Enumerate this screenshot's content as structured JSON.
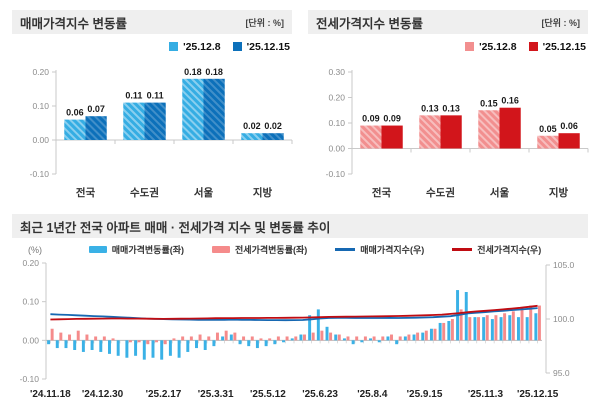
{
  "panels": {
    "sale": {
      "title": "매매가격지수 변동률",
      "unit": "[단위 : %]",
      "chart_data": {
        "type": "bar",
        "categories": [
          "전국",
          "수도권",
          "서울",
          "지방"
        ],
        "series": [
          {
            "name": "'25.12.8",
            "color": "#35ADE3",
            "hatch": true,
            "values": [
              0.06,
              0.11,
              0.18,
              0.02
            ]
          },
          {
            "name": "'25.12.15",
            "color": "#0C70BA",
            "hatch": true,
            "values": [
              0.07,
              0.11,
              0.18,
              0.02
            ]
          }
        ],
        "ylim": [
          -0.1,
          0.2
        ],
        "yticks": [
          0.2,
          0.1,
          0.0,
          -0.1
        ]
      }
    },
    "jeonse": {
      "title": "전세가격지수 변동률",
      "unit": "[단위 : %]",
      "chart_data": {
        "type": "bar",
        "categories": [
          "전국",
          "수도권",
          "서울",
          "지방"
        ],
        "series": [
          {
            "name": "'25.12.8",
            "color": "#F28F8F",
            "hatch": true,
            "values": [
              0.09,
              0.13,
              0.15,
              0.05
            ]
          },
          {
            "name": "'25.12.15",
            "color": "#D2151B",
            "hatch": false,
            "values": [
              0.09,
              0.13,
              0.16,
              0.06
            ]
          }
        ],
        "ylim": [
          -0.1,
          0.3
        ],
        "yticks": [
          0.3,
          0.2,
          0.1,
          0.0,
          -0.1
        ]
      }
    },
    "trend": {
      "title": "최근 1년간 전국 아파트 매매 · 전세가격 지수 및 변동률 추이",
      "left_axis_unit": "(%)",
      "chart_data": {
        "type": "combo",
        "weeks": 57,
        "x_tick_labels": [
          "'24.11.18",
          "'24.12.30",
          "'25.2.17",
          "'25.3.31",
          "'25.5.12",
          "'25.6.23",
          "'25.8.4",
          "'25.9.15",
          "'25.11.3",
          "'25.12.15"
        ],
        "x_tick_positions": [
          0,
          6,
          13,
          19,
          25,
          31,
          37,
          43,
          50,
          56
        ],
        "bar_series": [
          {
            "name": "매매가격변동률(좌)",
            "color": "#3AB1E6",
            "values": [
              -0.01,
              -0.02,
              -0.02,
              -0.025,
              -0.03,
              -0.025,
              -0.03,
              -0.035,
              -0.04,
              -0.045,
              -0.04,
              -0.05,
              -0.045,
              -0.05,
              -0.04,
              -0.045,
              -0.03,
              -0.02,
              -0.025,
              -0.015,
              0.01,
              0.015,
              -0.01,
              -0.015,
              -0.02,
              -0.015,
              -0.01,
              -0.005,
              0.005,
              0.015,
              0.065,
              0.08,
              0.035,
              0.015,
              0.005,
              -0.01,
              -0.005,
              0.005,
              -0.005,
              0.01,
              -0.01,
              0.01,
              0.015,
              0.02,
              0.03,
              0.045,
              0.05,
              0.13,
              0.125,
              0.06,
              0.06,
              0.055,
              0.06,
              0.065,
              0.06,
              0.06,
              0.07
            ]
          },
          {
            "name": "전세가격변동률(좌)",
            "color": "#F58B8B",
            "values": [
              0.03,
              0.02,
              0.015,
              0.025,
              0.015,
              0.01,
              0.01,
              0.005,
              0.0,
              -0.005,
              -0.005,
              -0.01,
              -0.005,
              -0.01,
              0.005,
              0.01,
              0.01,
              0.015,
              0.01,
              0.02,
              0.025,
              0.02,
              0.01,
              0.01,
              0.005,
              0.005,
              0.01,
              0.01,
              0.01,
              0.015,
              0.02,
              0.025,
              0.02,
              0.015,
              0.01,
              0.01,
              0.01,
              0.01,
              0.01,
              0.015,
              0.01,
              0.015,
              0.02,
              0.025,
              0.03,
              0.045,
              0.055,
              0.08,
              0.06,
              0.06,
              0.065,
              0.065,
              0.07,
              0.075,
              0.08,
              0.09,
              0.09
            ]
          }
        ],
        "line_series": [
          {
            "name": "매매가격지수(우)",
            "color": "#1668B2",
            "axis": "right",
            "values": [
              100.44,
              100.41,
              100.38,
              100.34,
              100.31,
              100.27,
              100.24,
              100.2,
              100.16,
              100.12,
              100.08,
              100.04,
              100.01,
              99.99,
              99.97,
              99.95,
              99.94,
              99.93,
              99.92,
              99.92,
              99.93,
              99.94,
              99.93,
              99.92,
              99.91,
              99.9,
              99.9,
              99.89,
              99.9,
              99.91,
              99.97,
              100.05,
              100.09,
              100.1,
              100.1,
              100.09,
              100.09,
              100.09,
              100.09,
              100.1,
              100.09,
              100.1,
              100.12,
              100.14,
              100.17,
              100.21,
              100.26,
              100.39,
              100.52,
              100.58,
              100.64,
              100.7,
              100.76,
              100.82,
              100.88,
              100.94,
              101.01
            ]
          },
          {
            "name": "전세가격지수(우)",
            "color": "#C00C12",
            "axis": "right",
            "values": [
              99.95,
              99.97,
              99.99,
              100.01,
              100.02,
              100.03,
              100.04,
              100.05,
              100.05,
              100.04,
              100.04,
              100.03,
              100.02,
              100.01,
              100.02,
              100.03,
              100.04,
              100.05,
              100.06,
              100.07,
              100.08,
              100.08,
              100.09,
              100.09,
              100.09,
              100.1,
              100.1,
              100.11,
              100.12,
              100.13,
              100.15,
              100.17,
              100.19,
              100.2,
              100.21,
              100.22,
              100.23,
              100.24,
              100.25,
              100.27,
              100.28,
              100.3,
              100.32,
              100.34,
              100.37,
              100.41,
              100.47,
              100.55,
              100.63,
              100.7,
              100.76,
              100.82,
              100.89,
              100.96,
              101.04,
              101.13,
              101.22
            ]
          }
        ],
        "left_ylim": [
          -0.1,
          0.2
        ],
        "left_yticks": [
          0.2,
          0.1,
          0.0,
          -0.1
        ],
        "right_ylim": [
          95.0,
          105.0
        ],
        "right_yticks": [
          105.0,
          100.0,
          95.0
        ]
      }
    }
  }
}
